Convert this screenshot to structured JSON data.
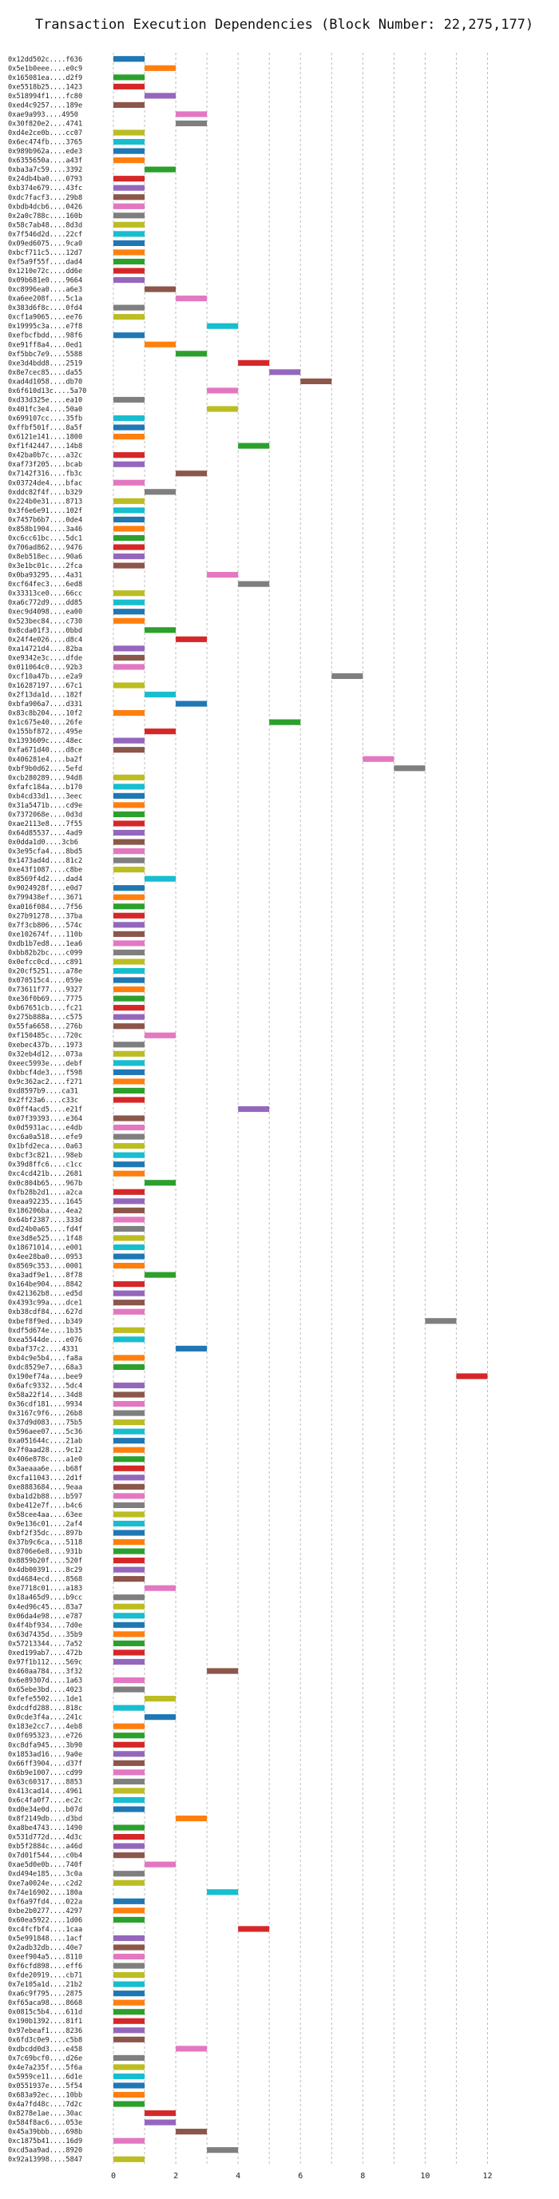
{
  "chart_data": {
    "type": "bar",
    "orientation": "horizontal",
    "title": "Transaction Execution Dependencies (Block Number: 22,275,177)",
    "xlabel": "",
    "ylabel": "",
    "xlim": [
      0,
      12.5
    ],
    "xticks": [
      0,
      2,
      4,
      6,
      8,
      10,
      12
    ],
    "grid": "vertical dashed",
    "legend": "none",
    "bar_length": 1,
    "palette": [
      "#1f77b4",
      "#ff7f0e",
      "#2ca02c",
      "#d62728",
      "#9467bd",
      "#8c564b",
      "#e377c2",
      "#7f7f7f",
      "#bcbd22",
      "#17becf"
    ],
    "transactions": [
      {
        "hash": "0x12dd502c....f636",
        "start": 0
      },
      {
        "hash": "0x5e1b0eee....e0c9",
        "start": 1
      },
      {
        "hash": "0x165081ea....d2f9",
        "start": 0
      },
      {
        "hash": "0xe5518b25....1423",
        "start": 0
      },
      {
        "hash": "0x518994f1....fc80",
        "start": 1
      },
      {
        "hash": "0xed4c9257....189e",
        "start": 0
      },
      {
        "hash": "0xae9a993....4950",
        "start": 2
      },
      {
        "hash": "0x30f820e2....4741",
        "start": 2
      },
      {
        "hash": "0xd4e2ce0b....cc07",
        "start": 0
      },
      {
        "hash": "0x6ec474fb....3765",
        "start": 0
      },
      {
        "hash": "0x989b962a....ede3",
        "start": 0
      },
      {
        "hash": "0x6355650a....a43f",
        "start": 0
      },
      {
        "hash": "0xba3a7c59....3392",
        "start": 1
      },
      {
        "hash": "0x24db4ba0....0793",
        "start": 0
      },
      {
        "hash": "0xb374e679....43fc",
        "start": 0
      },
      {
        "hash": "0xdc7facf3....29b8",
        "start": 0
      },
      {
        "hash": "0xbdb4dcb6....0426",
        "start": 0
      },
      {
        "hash": "0x2a0c788c....160b",
        "start": 0
      },
      {
        "hash": "0x58c7ab48....8d3d",
        "start": 0
      },
      {
        "hash": "0x7f546d2d....22cf",
        "start": 0
      },
      {
        "hash": "0x09ed6075....9ca0",
        "start": 0
      },
      {
        "hash": "0xbcf711c5....12d7",
        "start": 0
      },
      {
        "hash": "0xf5a9f55f....dad4",
        "start": 0
      },
      {
        "hash": "0x1210e72c....dd6e",
        "start": 0
      },
      {
        "hash": "0x09b681e0....9664",
        "start": 0
      },
      {
        "hash": "0xc8996ea0....a6e3",
        "start": 1
      },
      {
        "hash": "0xa6ee208f....5c1a",
        "start": 2
      },
      {
        "hash": "0x383d6f8c....0fd4",
        "start": 0
      },
      {
        "hash": "0xcf1a9065....ee76",
        "start": 0
      },
      {
        "hash": "0x19995c3a....e7f8",
        "start": 3
      },
      {
        "hash": "0xefbcfbdd....98f6",
        "start": 0
      },
      {
        "hash": "0xe91ff8a4....0ed1",
        "start": 1
      },
      {
        "hash": "0xf5bbc7e9....5588",
        "start": 2
      },
      {
        "hash": "0xe3d4bdd8....2519",
        "start": 4
      },
      {
        "hash": "0x8e7cec85....da55",
        "start": 5
      },
      {
        "hash": "0xad4d1058....db70",
        "start": 6
      },
      {
        "hash": "0x6f610d13c....5a70",
        "start": 3
      },
      {
        "hash": "0xd33d325e....ea10",
        "start": 0
      },
      {
        "hash": "0x401fc3e4....50a0",
        "start": 3
      },
      {
        "hash": "0x699107cc....35fb",
        "start": 0
      },
      {
        "hash": "0xffbf501f....8a5f",
        "start": 0
      },
      {
        "hash": "0x6121e141....1800",
        "start": 0
      },
      {
        "hash": "0xf1f42447....14b8",
        "start": 4
      },
      {
        "hash": "0x42ba0b7c....a32c",
        "start": 0
      },
      {
        "hash": "0xaf73f205....bcab",
        "start": 0
      },
      {
        "hash": "0x7142f316....fb3c",
        "start": 2
      },
      {
        "hash": "0x03724de4....bfac",
        "start": 0
      },
      {
        "hash": "0xddc82f4f....b329",
        "start": 1
      },
      {
        "hash": "0x224b0e31....8713",
        "start": 0
      },
      {
        "hash": "0x3f6e6e91....102f",
        "start": 0
      },
      {
        "hash": "0x7457b6b7....0de4",
        "start": 0
      },
      {
        "hash": "0x858b1904....3a46",
        "start": 0
      },
      {
        "hash": "0xc6cc61bc....5dc1",
        "start": 0
      },
      {
        "hash": "0x706ad862....9476",
        "start": 0
      },
      {
        "hash": "0x8eb518ec....90a6",
        "start": 0
      },
      {
        "hash": "0x3e1bc01c....2fca",
        "start": 0
      },
      {
        "hash": "0x0ba93295....4a31",
        "start": 3
      },
      {
        "hash": "0xcf64fec3....6ed8",
        "start": 4
      },
      {
        "hash": "0x33313ce0....66cc",
        "start": 0
      },
      {
        "hash": "0xa6c772d9....dd85",
        "start": 0
      },
      {
        "hash": "0xec9d4098....ea00",
        "start": 0
      },
      {
        "hash": "0x523bec84....c730",
        "start": 0
      },
      {
        "hash": "0x8cda01f3....0bbd",
        "start": 1
      },
      {
        "hash": "0x24f4e026....d8c4",
        "start": 2
      },
      {
        "hash": "0xa14721d4....82ba",
        "start": 0
      },
      {
        "hash": "0xe9342e3c....dfde",
        "start": 0
      },
      {
        "hash": "0x011064c0....92b3",
        "start": 0
      },
      {
        "hash": "0xcf10a47b....e2a9",
        "start": 7
      },
      {
        "hash": "0x16287197....67c1",
        "start": 0
      },
      {
        "hash": "0x2f13da1d....182f",
        "start": 1
      },
      {
        "hash": "0xbfa906a7....d331",
        "start": 2
      },
      {
        "hash": "0x83c8b204....10f2",
        "start": 0
      },
      {
        "hash": "0x1c675e40....26fe",
        "start": 5
      },
      {
        "hash": "0x155bf872....495e",
        "start": 1
      },
      {
        "hash": "0x1393609c....48ec",
        "start": 0
      },
      {
        "hash": "0xfa671d40....d8ce",
        "start": 0
      },
      {
        "hash": "0x406281e4....ba2f",
        "start": 8
      },
      {
        "hash": "0xbf9b0d62....5efd",
        "start": 9
      },
      {
        "hash": "0xcb280289....94d8",
        "start": 0
      },
      {
        "hash": "0xfafc184a....b170",
        "start": 0
      },
      {
        "hash": "0xb4cd33d1....3eec",
        "start": 0
      },
      {
        "hash": "0x31a5471b....cd9e",
        "start": 0
      },
      {
        "hash": "0x7372068e....0d3d",
        "start": 0
      },
      {
        "hash": "0xae2113e8....7f55",
        "start": 0
      },
      {
        "hash": "0x64d85537....4ad9",
        "start": 0
      },
      {
        "hash": "0x0dda1d0....3cb6",
        "start": 0
      },
      {
        "hash": "0x3e95cfa4....8bd5",
        "start": 0
      },
      {
        "hash": "0x1473ad4d....81c2",
        "start": 0
      },
      {
        "hash": "0xe43f1087....c8be",
        "start": 0
      },
      {
        "hash": "0x8569f4d2....dad4",
        "start": 1
      },
      {
        "hash": "0x9024928f....e0d7",
        "start": 0
      },
      {
        "hash": "0x799438ef....3671",
        "start": 0
      },
      {
        "hash": "0xa016f084....7f56",
        "start": 0
      },
      {
        "hash": "0x27b91278....37ba",
        "start": 0
      },
      {
        "hash": "0x7f3cb806....574c",
        "start": 0
      },
      {
        "hash": "0xe102674f....110b",
        "start": 0
      },
      {
        "hash": "0xdb1b7ed8....1ea6",
        "start": 0
      },
      {
        "hash": "0xbb82b2bc....c099",
        "start": 0
      },
      {
        "hash": "0x0efcc0cd....c891",
        "start": 0
      },
      {
        "hash": "0x20cf5251....a78e",
        "start": 0
      },
      {
        "hash": "0x070515c4....059e",
        "start": 0
      },
      {
        "hash": "0x73611f77....9327",
        "start": 0
      },
      {
        "hash": "0xe36f0b69....7775",
        "start": 0
      },
      {
        "hash": "0xb67651cb....fc21",
        "start": 0
      },
      {
        "hash": "0x275b888a....c575",
        "start": 0
      },
      {
        "hash": "0x55fa6658....276b",
        "start": 0
      },
      {
        "hash": "0xf150485c....720c",
        "start": 1
      },
      {
        "hash": "0xebec437b....1973",
        "start": 0
      },
      {
        "hash": "0x32eb4d12....073a",
        "start": 0
      },
      {
        "hash": "0xeec5993e....debf",
        "start": 0
      },
      {
        "hash": "0xbbcf4de3....f598",
        "start": 0
      },
      {
        "hash": "0x9c362ac2....f271",
        "start": 0
      },
      {
        "hash": "0xd8597b9....ca31",
        "start": 0
      },
      {
        "hash": "0x2ff23a6....c33c",
        "start": 0
      },
      {
        "hash": "0x0ff4acd5....e21f",
        "start": 4
      },
      {
        "hash": "0x07f39393....e364",
        "start": 0
      },
      {
        "hash": "0x0d5931ac....e4db",
        "start": 0
      },
      {
        "hash": "0xc6a0a518....efe9",
        "start": 0
      },
      {
        "hash": "0x1bfd2eca....0a63",
        "start": 0
      },
      {
        "hash": "0xbcf3c821....98eb",
        "start": 0
      },
      {
        "hash": "0x39d8ffc6....c1cc",
        "start": 0
      },
      {
        "hash": "0xc4cd421b....2681",
        "start": 0
      },
      {
        "hash": "0x0c804b65....967b",
        "start": 1
      },
      {
        "hash": "0xfb28b2d1....a2ca",
        "start": 0
      },
      {
        "hash": "0xeaa92235....1645",
        "start": 0
      },
      {
        "hash": "0x186206ba....4ea2",
        "start": 0
      },
      {
        "hash": "0x64bf2387....333d",
        "start": 0
      },
      {
        "hash": "0xd24b0a65....fd4f",
        "start": 0
      },
      {
        "hash": "0xe3d8e525....1f48",
        "start": 0
      },
      {
        "hash": "0x18671014....e001",
        "start": 0
      },
      {
        "hash": "0x4ee28ba0....0953",
        "start": 0
      },
      {
        "hash": "0x8569c353....0001",
        "start": 0
      },
      {
        "hash": "0xa3adf9e1....8f78",
        "start": 1
      },
      {
        "hash": "0x164be904....8842",
        "start": 0
      },
      {
        "hash": "0x421362b8....ed5d",
        "start": 0
      },
      {
        "hash": "0x4393c99a....dce1",
        "start": 0
      },
      {
        "hash": "0xb38cdf84....627d",
        "start": 0
      },
      {
        "hash": "0xbef8f9ed....b349",
        "start": 10
      },
      {
        "hash": "0xdf5d674e....1b35",
        "start": 0
      },
      {
        "hash": "0xea5544de....e076",
        "start": 0
      },
      {
        "hash": "0xbaf37c2....4331",
        "start": 2
      },
      {
        "hash": "0xb4c9e5b4....fa8a",
        "start": 0
      },
      {
        "hash": "0xdc8529e7....68a3",
        "start": 0
      },
      {
        "hash": "0x190ef74a....bee9",
        "start": 11
      },
      {
        "hash": "0x6afc9332....5dc4",
        "start": 0
      },
      {
        "hash": "0x58a22f14....34d8",
        "start": 0
      },
      {
        "hash": "0x36cdf181....9934",
        "start": 0
      },
      {
        "hash": "0x3167c9f6....26b8",
        "start": 0
      },
      {
        "hash": "0x37d9d083....75b5",
        "start": 0
      },
      {
        "hash": "0x596aee07....5c36",
        "start": 0
      },
      {
        "hash": "0xa051644c....21ab",
        "start": 0
      },
      {
        "hash": "0x7f0aad28....9c12",
        "start": 0
      },
      {
        "hash": "0x406e878c....a1e0",
        "start": 0
      },
      {
        "hash": "0x3aeaaa6e....b68f",
        "start": 0
      },
      {
        "hash": "0xcfa11043....2d1f",
        "start": 0
      },
      {
        "hash": "0xe8883684....9eaa",
        "start": 0
      },
      {
        "hash": "0xba1d2b88....b597",
        "start": 0
      },
      {
        "hash": "0xbe412e7f....b4c6",
        "start": 0
      },
      {
        "hash": "0x58cee4aa....63ee",
        "start": 0
      },
      {
        "hash": "0x9e136c01....2af4",
        "start": 0
      },
      {
        "hash": "0xbf2f35dc....897b",
        "start": 0
      },
      {
        "hash": "0x37b9c6ca....5118",
        "start": 0
      },
      {
        "hash": "0x8706e6e8....931b",
        "start": 0
      },
      {
        "hash": "0x8859b20f....520f",
        "start": 0
      },
      {
        "hash": "0x4db00391....8c29",
        "start": 0
      },
      {
        "hash": "0xd4684ecd....8568",
        "start": 0
      },
      {
        "hash": "0xe7718c01....a183",
        "start": 1
      },
      {
        "hash": "0x18a465d9....b9cc",
        "start": 0
      },
      {
        "hash": "0x4ed96c45....83a7",
        "start": 0
      },
      {
        "hash": "0x06da4e98....e787",
        "start": 0
      },
      {
        "hash": "0x4f4bf934....7d0e",
        "start": 0
      },
      {
        "hash": "0x63d7435d....35b9",
        "start": 0
      },
      {
        "hash": "0x57213344....7a52",
        "start": 0
      },
      {
        "hash": "0xed199ab7....472b",
        "start": 0
      },
      {
        "hash": "0x97f1b112....569c",
        "start": 0
      },
      {
        "hash": "0x460aa784....3f32",
        "start": 3
      },
      {
        "hash": "0x6e89307d....1a63",
        "start": 0
      },
      {
        "hash": "0x65ebe3bd....4023",
        "start": 0
      },
      {
        "hash": "0xfefe5502....1de1",
        "start": 1
      },
      {
        "hash": "0xdcdfd288....818c",
        "start": 0
      },
      {
        "hash": "0x0cde3f4a....241c",
        "start": 1
      },
      {
        "hash": "0x183e2cc7....4eb8",
        "start": 0
      },
      {
        "hash": "0x0f695323....e726",
        "start": 0
      },
      {
        "hash": "0xc8dfa945....3b90",
        "start": 0
      },
      {
        "hash": "0x1853ad16....9a0e",
        "start": 0
      },
      {
        "hash": "0x66ff3904....d37f",
        "start": 0
      },
      {
        "hash": "0x6b9e1007....cd99",
        "start": 0
      },
      {
        "hash": "0x63c60317....8853",
        "start": 0
      },
      {
        "hash": "0x413cad14....4961",
        "start": 0
      },
      {
        "hash": "0x6c4fa0f7....ec2c",
        "start": 0
      },
      {
        "hash": "0xd0e34e0d....b07d",
        "start": 0
      },
      {
        "hash": "0x8f2149db....d3bd",
        "start": 2
      },
      {
        "hash": "0xa8be4743....1490",
        "start": 0
      },
      {
        "hash": "0x531d772d....4d3c",
        "start": 0
      },
      {
        "hash": "0xb5f2884c....a46d",
        "start": 0
      },
      {
        "hash": "0x7d01f544....c0b4",
        "start": 0
      },
      {
        "hash": "0xae5d0e0b....740f",
        "start": 1
      },
      {
        "hash": "0xd494e185....3c0a",
        "start": 0
      },
      {
        "hash": "0xe7a0024e....c2d2",
        "start": 0
      },
      {
        "hash": "0x74e16902....180a",
        "start": 3
      },
      {
        "hash": "0xf6a97fd4....022a",
        "start": 0
      },
      {
        "hash": "0xbe2b0277....4297",
        "start": 0
      },
      {
        "hash": "0x60ea5922....1d06",
        "start": 0
      },
      {
        "hash": "0xc4fcfbf4....1caa",
        "start": 4
      },
      {
        "hash": "0x5e991848....1acf",
        "start": 0
      },
      {
        "hash": "0x2adb32db....40e7",
        "start": 0
      },
      {
        "hash": "0xeef904a5....8110",
        "start": 0
      },
      {
        "hash": "0xf6cfd898....eff6",
        "start": 0
      },
      {
        "hash": "0xfde20919....cb71",
        "start": 0
      },
      {
        "hash": "0x7e105a1d....21b2",
        "start": 0
      },
      {
        "hash": "0xa6c9f795....2875",
        "start": 0
      },
      {
        "hash": "0xf65aca98....8668",
        "start": 0
      },
      {
        "hash": "0x0815c5b4....611d",
        "start": 0
      },
      {
        "hash": "0x190b1392....81f1",
        "start": 0
      },
      {
        "hash": "0x97ebeaf1....8236",
        "start": 0
      },
      {
        "hash": "0x6fd3c0e9....c5b8",
        "start": 0
      },
      {
        "hash": "0xdbcdd0d3....e458",
        "start": 2
      },
      {
        "hash": "0x7c69bcf0....d26e",
        "start": 0
      },
      {
        "hash": "0x4e7a235f....5f6a",
        "start": 0
      },
      {
        "hash": "0x5959ce11....6d1e",
        "start": 0
      },
      {
        "hash": "0x0551937e....5f54",
        "start": 0
      },
      {
        "hash": "0x683a92ec....10bb",
        "start": 0
      },
      {
        "hash": "0x4a7fd48c....7d2c",
        "start": 0
      },
      {
        "hash": "0x8278e1ae....30ac",
        "start": 1
      },
      {
        "hash": "0x584f8ac6....053e",
        "start": 1
      },
      {
        "hash": "0x45a39bbb....698b",
        "start": 2
      },
      {
        "hash": "0xc1875b41....16d9",
        "start": 0
      },
      {
        "hash": "0xcd5aa9ad....8920",
        "start": 3
      },
      {
        "hash": "0x92a13998....5847",
        "start": 0
      }
    ]
  }
}
